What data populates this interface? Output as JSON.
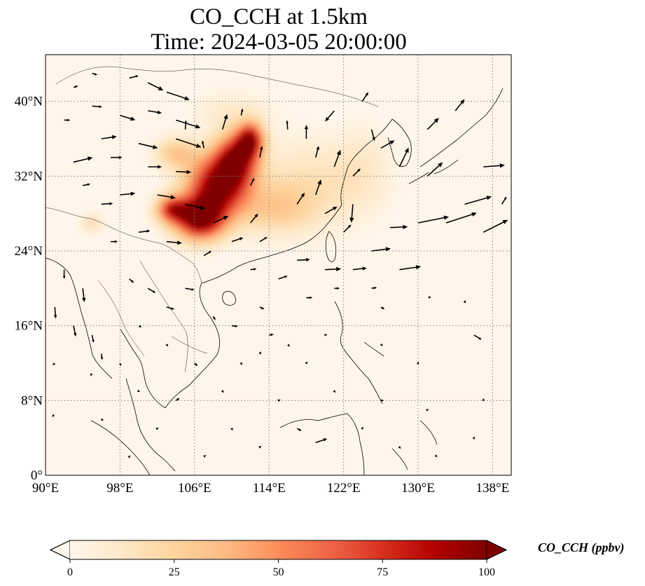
{
  "title": {
    "line1": "CO_CCH at 1.5km",
    "line2": "Time: 2024-03-05 20:00:00"
  },
  "map": {
    "projection": "PlateCarree",
    "lon_range": [
      90,
      140
    ],
    "lat_range": [
      0,
      45
    ],
    "gridlines": "dotted gray",
    "background_color": "#fff5eb",
    "coastline_color": "#000000",
    "x_ticks": [
      {
        "value": 90,
        "label": "90°E"
      },
      {
        "value": 98,
        "label": "98°E"
      },
      {
        "value": 106,
        "label": "106°E"
      },
      {
        "value": 114,
        "label": "114°E"
      },
      {
        "value": 122,
        "label": "122°E"
      },
      {
        "value": 130,
        "label": "130°E"
      },
      {
        "value": 138,
        "label": "138°E"
      }
    ],
    "y_ticks": [
      {
        "value": 0,
        "label": "0°"
      },
      {
        "value": 8,
        "label": "8°N"
      },
      {
        "value": 16,
        "label": "16°N"
      },
      {
        "value": 24,
        "label": "24°N"
      },
      {
        "value": 32,
        "label": "32°N"
      },
      {
        "value": 40,
        "label": "40°N"
      }
    ]
  },
  "colorbar": {
    "label": "CO_CCH (ppbv)",
    "cmap": "OrRd",
    "min": 0,
    "max": 100,
    "extend": "both",
    "colors": [
      "#fff7ec",
      "#fee8c8",
      "#fdd49e",
      "#fdbb84",
      "#fc8d59",
      "#ef6548",
      "#d7301f",
      "#b30000",
      "#7f0000"
    ],
    "ticks": [
      {
        "value": 0,
        "label": "0"
      },
      {
        "value": 25,
        "label": "25"
      },
      {
        "value": 50,
        "label": "50"
      },
      {
        "value": 75,
        "label": "75"
      },
      {
        "value": 100,
        "label": "100"
      }
    ]
  },
  "chart_data": {
    "type": "heatmap",
    "variable": "CO_CCH",
    "units": "ppbv",
    "level": "1.5km",
    "time": "2024-03-05 20:00:00",
    "plumes": [
      {
        "center": [
          108.5,
          31.0
        ],
        "spread": [
          3.2,
          3.2
        ],
        "peak": 95
      },
      {
        "center": [
          106.5,
          27.5
        ],
        "spread": [
          2.6,
          2.2
        ],
        "peak": 100
      },
      {
        "center": [
          110.5,
          34.0
        ],
        "spread": [
          2.2,
          2.6
        ],
        "peak": 80
      },
      {
        "center": [
          112.0,
          36.0
        ],
        "spread": [
          1.4,
          1.8
        ],
        "peak": 75
      },
      {
        "center": [
          103.5,
          28.5
        ],
        "spread": [
          1.6,
          1.4
        ],
        "peak": 65
      },
      {
        "center": [
          104.0,
          34.5
        ],
        "spread": [
          2.2,
          1.6
        ],
        "peak": 30
      },
      {
        "center": [
          118.0,
          31.0
        ],
        "spread": [
          6.0,
          4.5
        ],
        "peak": 18
      },
      {
        "center": [
          114.5,
          28.5
        ],
        "spread": [
          4.0,
          2.5
        ],
        "peak": 22
      },
      {
        "center": [
          124.0,
          33.0
        ],
        "spread": [
          3.0,
          4.0
        ],
        "peak": 10
      },
      {
        "center": [
          95.0,
          27.0
        ],
        "spread": [
          1.2,
          1.0
        ],
        "peak": 18
      },
      {
        "center": [
          110.0,
          39.0
        ],
        "spread": [
          4.0,
          2.0
        ],
        "peak": 10
      }
    ],
    "wind_vectors": [
      [
        101,
        42,
        2.0,
        -1.0
      ],
      [
        103,
        41,
        3.0,
        -1.0
      ],
      [
        99,
        42.5,
        1.2,
        0.3
      ],
      [
        95,
        43,
        0.7,
        -0.2
      ],
      [
        93,
        41.5,
        0.6,
        0.2
      ],
      [
        95,
        39.5,
        1.3,
        -0.1
      ],
      [
        92,
        38,
        0.8,
        0.0
      ],
      [
        98,
        38.5,
        2.0,
        -0.6
      ],
      [
        101,
        39,
        1.8,
        -0.3
      ],
      [
        104,
        38,
        3.2,
        -1.0
      ],
      [
        104,
        36,
        3.3,
        -1.1
      ],
      [
        100,
        35.5,
        2.5,
        -0.6
      ],
      [
        96,
        36,
        2.0,
        0.3
      ],
      [
        97,
        34,
        1.5,
        0.0
      ],
      [
        93,
        33.5,
        2.5,
        0.6
      ],
      [
        101,
        33,
        1.8,
        0.0
      ],
      [
        104,
        32.5,
        2.0,
        -0.1
      ],
      [
        94,
        31,
        1.0,
        0.2
      ],
      [
        98,
        30,
        2.0,
        0.2
      ],
      [
        102,
        30,
        2.4,
        -0.4
      ],
      [
        96,
        29,
        1.5,
        0.1
      ],
      [
        105,
        29,
        2.6,
        -0.6
      ],
      [
        108,
        27,
        2.0,
        0.9
      ],
      [
        112,
        27,
        1.0,
        1.2
      ],
      [
        113,
        25,
        1.0,
        0.6
      ],
      [
        110,
        25,
        1.5,
        0.5
      ],
      [
        103,
        25,
        2.0,
        -0.2
      ],
      [
        107,
        23.5,
        1.0,
        0.6
      ],
      [
        107,
        35,
        -0.2,
        1.0
      ],
      [
        109,
        37,
        0.6,
        2.0
      ],
      [
        111,
        38.5,
        0.2,
        0.9
      ],
      [
        105,
        37,
        0.1,
        1.2
      ],
      [
        113,
        34,
        0.3,
        1.5
      ],
      [
        112,
        31,
        0.5,
        1.0
      ],
      [
        116,
        37,
        -0.1,
        1.2
      ],
      [
        118,
        36,
        0.0,
        1.8
      ],
      [
        121,
        39,
        -1.2,
        -1.4
      ],
      [
        124,
        40,
        0.8,
        1.2
      ],
      [
        125,
        37,
        0.4,
        -1.5
      ],
      [
        126,
        35,
        1.8,
        1.0
      ],
      [
        128,
        33,
        1.2,
        2.5
      ],
      [
        131,
        37,
        1.5,
        1.5
      ],
      [
        134,
        39,
        1.2,
        1.5
      ],
      [
        137,
        33,
        2.8,
        0.2
      ],
      [
        135,
        29,
        3.5,
        1.0
      ],
      [
        133,
        27,
        4.0,
        1.3
      ],
      [
        137,
        26,
        3.2,
        1.6
      ],
      [
        130,
        27,
        4.0,
        0.8
      ],
      [
        127,
        26.5,
        2.3,
        0.1
      ],
      [
        125,
        24,
        2.5,
        0.3
      ],
      [
        128,
        22,
        2.8,
        0.4
      ],
      [
        123,
        22,
        1.8,
        0.2
      ],
      [
        120,
        22,
        2.1,
        0.1
      ],
      [
        117,
        23,
        1.7,
        0.1
      ],
      [
        122,
        26,
        1.0,
        1.0
      ],
      [
        120,
        28,
        1.6,
        0.9
      ],
      [
        123,
        29,
        -0.2,
        -2.4
      ],
      [
        119,
        30,
        0.7,
        2.0
      ],
      [
        117,
        29,
        1.0,
        1.5
      ],
      [
        121,
        33,
        0.8,
        2.2
      ],
      [
        119,
        34,
        0.4,
        1.5
      ],
      [
        123,
        32,
        1.0,
        1.0
      ],
      [
        131,
        32,
        2.0,
        1.8
      ],
      [
        139,
        29,
        0.6,
        1.0
      ],
      [
        97,
        25,
        0.9,
        0.0
      ],
      [
        100,
        26,
        1.5,
        0.2
      ],
      [
        92,
        22,
        0.0,
        -1.2
      ],
      [
        94,
        20,
        0.2,
        -1.8
      ],
      [
        91,
        18,
        0.1,
        -1.5
      ],
      [
        93,
        16,
        0.3,
        -1.4
      ],
      [
        95,
        15,
        0.2,
        -1.0
      ],
      [
        96,
        13,
        0.1,
        -0.8
      ],
      [
        99,
        21,
        0.6,
        -0.5
      ],
      [
        101,
        20,
        1.0,
        -0.6
      ],
      [
        103,
        18,
        1.0,
        -0.3
      ],
      [
        105,
        20,
        1.2,
        -0.2
      ],
      [
        112,
        22,
        0.8,
        0.1
      ],
      [
        115,
        21,
        1.2,
        0.4
      ],
      [
        113,
        18,
        0.6,
        -0.3
      ],
      [
        118,
        19,
        0.8,
        0.0
      ],
      [
        121,
        20,
        0.7,
        0.0
      ],
      [
        125,
        20,
        0.7,
        0.1
      ],
      [
        120,
        15,
        0.3,
        0.1
      ],
      [
        116,
        14,
        0.3,
        -0.3
      ],
      [
        126,
        18,
        0.5,
        -0.3
      ],
      [
        131,
        19,
        0.5,
        0.1
      ],
      [
        136,
        15,
        1.0,
        -0.6
      ],
      [
        135,
        18.5,
        0.1,
        0.3
      ],
      [
        114,
        15,
        0.6,
        0.1
      ],
      [
        110,
        16,
        0.8,
        -0.1
      ],
      [
        108,
        17,
        0.3,
        -0.5
      ],
      [
        100,
        16,
        0.4,
        -0.2
      ],
      [
        103,
        14,
        0.2,
        -0.3
      ],
      [
        106,
        12,
        0.4,
        -0.4
      ],
      [
        111,
        12,
        0.1,
        -0.3
      ],
      [
        113,
        13,
        0.2,
        0.3
      ],
      [
        118,
        12,
        0.2,
        0.2
      ],
      [
        126,
        14,
        0.3,
        -0.2
      ],
      [
        130,
        12,
        0.1,
        0.2
      ],
      [
        98,
        12,
        0.1,
        -0.4
      ],
      [
        95,
        11,
        -0.2,
        -0.5
      ],
      [
        91,
        12,
        -0.3,
        -0.3
      ],
      [
        100,
        9,
        0.2,
        -0.1
      ],
      [
        104,
        8,
        0.5,
        0.3
      ],
      [
        109,
        9,
        0.2,
        -0.2
      ],
      [
        115,
        8,
        0.3,
        0.1
      ],
      [
        121,
        9,
        0.2,
        -0.2
      ],
      [
        126,
        8,
        0.4,
        0.0
      ],
      [
        131,
        7,
        0.2,
        0.1
      ],
      [
        137,
        8,
        0.1,
        0.3
      ],
      [
        91,
        6.5,
        -0.4,
        -0.3
      ],
      [
        96,
        6,
        0.3,
        -0.2
      ],
      [
        102,
        5,
        0.2,
        0.1
      ],
      [
        110,
        5,
        0.1,
        -0.3
      ],
      [
        117,
        5,
        0.6,
        -0.3
      ],
      [
        124,
        5,
        0.2,
        0.2
      ],
      [
        119,
        3.5,
        1.5,
        0.5
      ],
      [
        113,
        3,
        0.2,
        0.2
      ],
      [
        107,
        2,
        0.3,
        0.2
      ],
      [
        99,
        2,
        0.1,
        0.2
      ],
      [
        128,
        3,
        0.2,
        -0.2
      ],
      [
        132,
        2,
        0.1,
        -0.1
      ],
      [
        136,
        4,
        0.1,
        0.2
      ]
    ]
  }
}
